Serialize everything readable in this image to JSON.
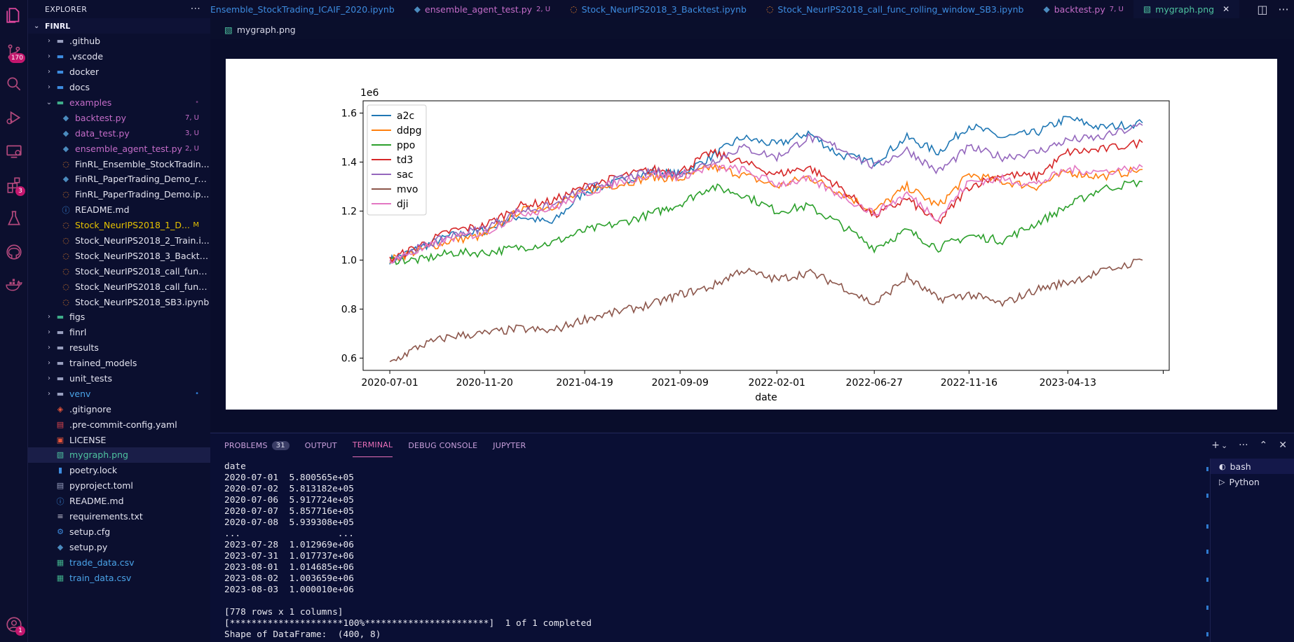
{
  "activity_bar": {
    "items": [
      {
        "icon": "files-icon"
      },
      {
        "icon": "source-control-icon",
        "badge": "170"
      },
      {
        "icon": "search-icon"
      },
      {
        "icon": "run-debug-icon"
      },
      {
        "icon": "remote-explorer-icon"
      },
      {
        "icon": "extensions-icon",
        "badge": "3"
      },
      {
        "icon": "testing-flask-icon"
      },
      {
        "icon": "github-icon"
      },
      {
        "icon": "docker-icon"
      },
      {
        "icon": "account-icon",
        "badge": "1"
      }
    ]
  },
  "sidebar": {
    "title": "EXPLORER",
    "more": "···",
    "root": "FINRL",
    "items": [
      {
        "level": 1,
        "chevron": "›",
        "icon": "github-folder-icon",
        "label": ".github",
        "color": "#e4e4f0"
      },
      {
        "level": 1,
        "chevron": "›",
        "icon": "vscode-folder-icon",
        "label": ".vscode",
        "color": "#e4e4f0"
      },
      {
        "level": 1,
        "chevron": "›",
        "icon": "docker-folder-icon",
        "label": "docker",
        "color": "#e4e4f0"
      },
      {
        "level": 1,
        "chevron": "›",
        "icon": "docs-folder-icon",
        "label": "docs",
        "color": "#e4e4f0"
      },
      {
        "level": 1,
        "chevron": "⌄",
        "icon": "examples-folder-icon",
        "label": "examples",
        "color": "#c46cc8",
        "deco": "•",
        "deco_color": "#6b3a78"
      },
      {
        "level": 2,
        "icon": "python-icon",
        "label": "backtest.py",
        "color": "#c46cc8",
        "deco": "7, U",
        "deco_color": "#c46cc8"
      },
      {
        "level": 2,
        "icon": "python-icon",
        "label": "data_test.py",
        "color": "#c46cc8",
        "deco": "3, U",
        "deco_color": "#c46cc8"
      },
      {
        "level": 2,
        "icon": "python-icon",
        "label": "ensemble_agent_test.py",
        "color": "#c46cc8",
        "deco": "2, U",
        "deco_color": "#c46cc8"
      },
      {
        "level": 2,
        "icon": "jupyter-icon",
        "label": "FinRL_Ensemble_StockTradin...",
        "color": "#e4e4f0"
      },
      {
        "level": 2,
        "icon": "python-icon",
        "label": "FinRL_PaperTrading_Demo_re...",
        "color": "#e4e4f0"
      },
      {
        "level": 2,
        "icon": "jupyter-icon",
        "label": "FinRL_PaperTrading_Demo.ip...",
        "color": "#e4e4f0"
      },
      {
        "level": 2,
        "icon": "info-icon",
        "label": "README.md",
        "color": "#e4e4f0"
      },
      {
        "level": 2,
        "icon": "jupyter-icon",
        "label": "Stock_NeurIPS2018_1_D...",
        "color": "#e5c100",
        "deco": "M",
        "deco_color": "#e5c100"
      },
      {
        "level": 2,
        "icon": "jupyter-icon",
        "label": "Stock_NeurIPS2018_2_Train.i...",
        "color": "#e4e4f0"
      },
      {
        "level": 2,
        "icon": "jupyter-icon",
        "label": "Stock_NeurIPS2018_3_Backte...",
        "color": "#e4e4f0"
      },
      {
        "level": 2,
        "icon": "jupyter-icon",
        "label": "Stock_NeurIPS2018_call_func...",
        "color": "#e4e4f0"
      },
      {
        "level": 2,
        "icon": "jupyter-icon",
        "label": "Stock_NeurIPS2018_call_func...",
        "color": "#e4e4f0"
      },
      {
        "level": 2,
        "icon": "jupyter-icon",
        "label": "Stock_NeurIPS2018_SB3.ipynb",
        "color": "#e4e4f0"
      },
      {
        "level": 1,
        "chevron": "›",
        "icon": "images-folder-icon",
        "label": "figs",
        "color": "#e4e4f0"
      },
      {
        "level": 1,
        "chevron": "›",
        "icon": "folder-icon",
        "label": "finrl",
        "color": "#e4e4f0"
      },
      {
        "level": 1,
        "chevron": "›",
        "icon": "folder-icon",
        "label": "results",
        "color": "#e4e4f0"
      },
      {
        "level": 1,
        "chevron": "›",
        "icon": "folder-icon",
        "label": "trained_models",
        "color": "#e4e4f0"
      },
      {
        "level": 1,
        "chevron": "›",
        "icon": "folder-icon",
        "label": "unit_tests",
        "color": "#e4e4f0"
      },
      {
        "level": 1,
        "chevron": "›",
        "icon": "folder-icon",
        "label": "venv",
        "color": "#4aa3e8",
        "deco": "•",
        "deco_color": "#2f7bd0"
      },
      {
        "level": 1,
        "icon": "git-icon",
        "label": ".gitignore",
        "color": "#e4e4f0"
      },
      {
        "level": 1,
        "icon": "yaml-icon",
        "label": ".pre-commit-config.yaml",
        "color": "#e4e4f0"
      },
      {
        "level": 1,
        "icon": "license-icon",
        "label": "LICENSE",
        "color": "#e4e4f0"
      },
      {
        "level": 1,
        "icon": "image-file-icon",
        "label": "mygraph.png",
        "color": "#4ec3a0",
        "active": true
      },
      {
        "level": 1,
        "icon": "lock-file-icon",
        "label": "poetry.lock",
        "color": "#e4e4f0"
      },
      {
        "level": 1,
        "icon": "toml-icon",
        "label": "pyproject.toml",
        "color": "#e4e4f0"
      },
      {
        "level": 1,
        "icon": "info-icon",
        "label": "README.md",
        "color": "#e4e4f0"
      },
      {
        "level": 1,
        "icon": "text-file-icon",
        "label": "requirements.txt",
        "color": "#e4e4f0"
      },
      {
        "level": 1,
        "icon": "gear-icon",
        "label": "setup.cfg",
        "color": "#e4e4f0"
      },
      {
        "level": 1,
        "icon": "python-icon",
        "label": "setup.py",
        "color": "#e4e4f0"
      },
      {
        "level": 1,
        "icon": "csv-icon",
        "label": "trade_data.csv",
        "color": "#4aa3e8"
      },
      {
        "level": 1,
        "icon": "csv-icon",
        "label": "train_data.csv",
        "color": "#4aa3e8"
      }
    ]
  },
  "tabs": [
    {
      "icon": "jupyter-icon",
      "label": "Ensemble_StockTrading_ICAIF_2020.ipynb",
      "color": "#3d8ce0",
      "icon_color": "#e8832a"
    },
    {
      "icon": "python-icon",
      "label": "ensemble_agent_test.py",
      "deco": "2, U",
      "color": "#c46cc8",
      "icon_color": "#4b8bbe"
    },
    {
      "icon": "jupyter-icon",
      "label": "Stock_NeurIPS2018_3_Backtest.ipynb",
      "color": "#3d8ce0",
      "icon_color": "#e8832a"
    },
    {
      "icon": "jupyter-icon",
      "label": "Stock_NeurIPS2018_call_func_rolling_window_SB3.ipynb",
      "color": "#3d8ce0",
      "icon_color": "#e8832a"
    },
    {
      "icon": "python-icon",
      "label": "backtest.py",
      "deco": "7, U",
      "color": "#c46cc8",
      "icon_color": "#4b8bbe"
    },
    {
      "icon": "image-file-icon",
      "label": "mygraph.png",
      "color": "#4ec3a0",
      "icon_color": "#4ec3a0",
      "active": true,
      "close": "✕"
    }
  ],
  "breadcrumb": {
    "icon": "image-file-icon",
    "label": "mygraph.png"
  },
  "chart_data": {
    "type": "line",
    "title": "",
    "xlabel": "date",
    "ylabel": "",
    "offset_label": "1e6",
    "ylim": [
      0.55,
      1.65
    ],
    "yticks": [
      0.6,
      0.8,
      1.0,
      1.2,
      1.4,
      1.6
    ],
    "xticks": [
      "2020-07-01",
      "2020-11-20",
      "2021-04-19",
      "2021-09-09",
      "2022-02-01",
      "2022-06-27",
      "2022-11-16",
      "2023-04-13"
    ],
    "x": [
      "2020-07-01",
      "2020-08-15",
      "2020-10-01",
      "2020-11-20",
      "2021-01-10",
      "2021-03-01",
      "2021-04-19",
      "2021-06-10",
      "2021-07-30",
      "2021-09-09",
      "2021-10-25",
      "2021-12-10",
      "2022-02-01",
      "2022-03-20",
      "2022-05-05",
      "2022-06-27",
      "2022-08-15",
      "2022-10-01",
      "2022-11-16",
      "2023-01-05",
      "2023-02-25",
      "2023-04-13",
      "2023-06-01",
      "2023-08-03"
    ],
    "legend_position": "upper-left",
    "series": [
      {
        "name": "a2c",
        "color": "#1f77b4",
        "values": [
          1.0,
          1.05,
          1.1,
          1.12,
          1.18,
          1.15,
          1.28,
          1.32,
          1.36,
          1.35,
          1.42,
          1.5,
          1.47,
          1.52,
          1.43,
          1.4,
          1.5,
          1.44,
          1.55,
          1.5,
          1.52,
          1.58,
          1.54,
          1.56
        ]
      },
      {
        "name": "ddpg",
        "color": "#ff7f0e",
        "values": [
          1.0,
          1.04,
          1.08,
          1.1,
          1.2,
          1.22,
          1.28,
          1.31,
          1.34,
          1.33,
          1.38,
          1.35,
          1.3,
          1.34,
          1.28,
          1.2,
          1.3,
          1.22,
          1.35,
          1.32,
          1.3,
          1.36,
          1.34,
          1.37
        ]
      },
      {
        "name": "ppo",
        "color": "#2ca02c",
        "values": [
          1.0,
          1.0,
          1.03,
          1.03,
          1.05,
          1.07,
          1.12,
          1.15,
          1.19,
          1.23,
          1.3,
          1.27,
          1.2,
          1.22,
          1.15,
          1.05,
          1.12,
          1.05,
          1.1,
          1.08,
          1.15,
          1.22,
          1.29,
          1.32
        ]
      },
      {
        "name": "td3",
        "color": "#d62728",
        "values": [
          1.0,
          1.06,
          1.12,
          1.14,
          1.22,
          1.24,
          1.3,
          1.34,
          1.37,
          1.36,
          1.44,
          1.4,
          1.35,
          1.38,
          1.3,
          1.18,
          1.25,
          1.15,
          1.3,
          1.35,
          1.34,
          1.44,
          1.45,
          1.48
        ]
      },
      {
        "name": "sac",
        "color": "#9467bd",
        "values": [
          1.0,
          1.05,
          1.1,
          1.13,
          1.2,
          1.22,
          1.29,
          1.33,
          1.36,
          1.35,
          1.4,
          1.46,
          1.42,
          1.5,
          1.46,
          1.38,
          1.45,
          1.36,
          1.46,
          1.42,
          1.44,
          1.49,
          1.5,
          1.55
        ]
      },
      {
        "name": "mvo",
        "color": "#8c564b",
        "values": [
          0.58,
          0.65,
          0.69,
          0.7,
          0.72,
          0.71,
          0.76,
          0.79,
          0.82,
          0.86,
          0.89,
          0.96,
          0.92,
          0.95,
          0.9,
          0.82,
          0.93,
          0.84,
          0.86,
          0.82,
          0.88,
          0.91,
          0.95,
          1.0
        ]
      },
      {
        "name": "dji",
        "color": "#e377c2",
        "values": [
          1.0,
          1.04,
          1.09,
          1.11,
          1.19,
          1.21,
          1.27,
          1.32,
          1.35,
          1.34,
          1.38,
          1.37,
          1.31,
          1.33,
          1.27,
          1.19,
          1.27,
          1.17,
          1.32,
          1.33,
          1.31,
          1.37,
          1.36,
          1.38
        ]
      }
    ]
  },
  "panel": {
    "tabs": [
      {
        "label": "PROBLEMS",
        "badge": "31"
      },
      {
        "label": "OUTPUT"
      },
      {
        "label": "TERMINAL",
        "active": true
      },
      {
        "label": "DEBUG CONSOLE"
      },
      {
        "label": "JUPYTER"
      }
    ],
    "actions": {
      "add": "+",
      "dropdown": "⌄",
      "more": "···",
      "maximize": "⌃",
      "close": "✕"
    },
    "terminal_lines": [
      "date",
      "2020-07-01  5.800565e+05",
      "2020-07-02  5.813182e+05",
      "2020-07-06  5.917724e+05",
      "2020-07-07  5.857716e+05",
      "2020-07-08  5.939308e+05",
      "...                  ...",
      "2023-07-28  1.012969e+06",
      "2023-07-31  1.017737e+06",
      "2023-08-01  1.014685e+06",
      "2023-08-02  1.003659e+06",
      "2023-08-03  1.000010e+06",
      "",
      "[778 rows x 1 columns]",
      "[*********************100%***********************]  1 of 1 completed",
      "Shape of DataFrame:  (400, 8)"
    ],
    "terminals": [
      {
        "icon": "bash-icon",
        "label": "bash",
        "active": true
      },
      {
        "icon": "terminal-python-icon",
        "label": "Python"
      }
    ]
  },
  "tab_actions": {
    "split": "◫",
    "more": "···"
  }
}
